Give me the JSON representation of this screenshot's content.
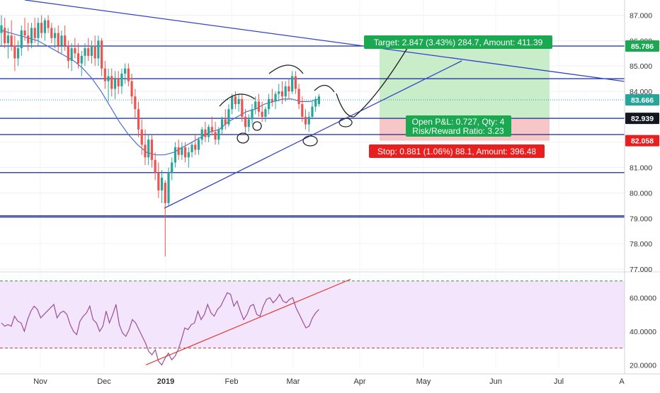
{
  "chart_data": [
    {
      "type": "candlestick",
      "ylim": [
        77.0,
        87.6
      ],
      "y_ticks": [
        "87.000",
        "86.000",
        "85.000",
        "84.000",
        "83.000",
        "82.000",
        "81.000",
        "80.000",
        "79.000",
        "78.000",
        "77.000"
      ],
      "x_ticks": [
        "Nov",
        "Dec",
        "2019",
        "Feb",
        "Mar",
        "Apr",
        "May",
        "Jun",
        "Jul",
        "A"
      ],
      "price_labels": [
        {
          "text": "85.786",
          "value": 85.786,
          "color": "#1aa851"
        },
        {
          "text": "83.666",
          "value": 83.666,
          "color": "#26a69a"
        },
        {
          "text": "82.939",
          "value": 82.939,
          "color": "#131722"
        },
        {
          "text": "82.058",
          "value": 82.058,
          "color": "#e91e1e"
        }
      ],
      "candles": [
        {
          "date": "2018-10-22",
          "o": 86.3,
          "h": 87.0,
          "l": 85.8,
          "c": 86.6
        },
        {
          "date": "2018-10-23",
          "o": 86.5,
          "h": 86.9,
          "l": 85.7,
          "c": 85.9
        },
        {
          "date": "2018-10-24",
          "o": 85.9,
          "h": 86.5,
          "l": 85.3,
          "c": 86.2
        },
        {
          "date": "2018-10-25",
          "o": 86.2,
          "h": 86.8,
          "l": 85.6,
          "c": 85.8
        },
        {
          "date": "2018-10-26",
          "o": 85.8,
          "h": 86.2,
          "l": 84.8,
          "c": 85.3
        },
        {
          "date": "2018-10-29",
          "o": 85.3,
          "h": 86.0,
          "l": 85.0,
          "c": 85.7
        },
        {
          "date": "2018-10-30",
          "o": 85.7,
          "h": 86.6,
          "l": 85.4,
          "c": 86.4
        },
        {
          "date": "2018-10-31",
          "o": 86.4,
          "h": 86.9,
          "l": 86.0,
          "c": 86.2
        },
        {
          "date": "2018-11-01",
          "o": 86.2,
          "h": 86.7,
          "l": 85.6,
          "c": 85.9
        },
        {
          "date": "2018-11-02",
          "o": 85.9,
          "h": 86.7,
          "l": 85.7,
          "c": 86.5
        },
        {
          "date": "2018-11-05",
          "o": 86.5,
          "h": 86.9,
          "l": 85.9,
          "c": 86.1
        },
        {
          "date": "2018-11-06",
          "o": 86.1,
          "h": 86.9,
          "l": 85.8,
          "c": 86.7
        },
        {
          "date": "2018-11-07",
          "o": 86.7,
          "h": 87.0,
          "l": 86.1,
          "c": 86.3
        },
        {
          "date": "2018-11-08",
          "o": 86.3,
          "h": 86.9,
          "l": 86.0,
          "c": 86.8
        },
        {
          "date": "2018-11-09",
          "o": 86.8,
          "h": 87.0,
          "l": 86.3,
          "c": 86.5
        },
        {
          "date": "2018-11-12",
          "o": 86.5,
          "h": 86.7,
          "l": 85.9,
          "c": 86.1
        },
        {
          "date": "2018-11-13",
          "o": 86.1,
          "h": 86.5,
          "l": 85.7,
          "c": 86.3
        },
        {
          "date": "2018-11-14",
          "o": 86.3,
          "h": 86.6,
          "l": 85.5,
          "c": 85.8
        },
        {
          "date": "2018-11-15",
          "o": 85.8,
          "h": 86.4,
          "l": 85.5,
          "c": 86.2
        },
        {
          "date": "2018-11-16",
          "o": 86.2,
          "h": 86.6,
          "l": 85.6,
          "c": 85.8
        },
        {
          "date": "2018-11-19",
          "o": 85.8,
          "h": 86.0,
          "l": 84.9,
          "c": 85.2
        },
        {
          "date": "2018-11-20",
          "o": 85.2,
          "h": 85.9,
          "l": 84.8,
          "c": 85.7
        },
        {
          "date": "2018-11-21",
          "o": 85.7,
          "h": 86.1,
          "l": 85.3,
          "c": 85.5
        },
        {
          "date": "2018-11-23",
          "o": 85.5,
          "h": 85.9,
          "l": 84.9,
          "c": 85.1
        },
        {
          "date": "2018-11-26",
          "o": 85.1,
          "h": 85.6,
          "l": 84.6,
          "c": 85.4
        },
        {
          "date": "2018-11-27",
          "o": 85.4,
          "h": 85.9,
          "l": 85.0,
          "c": 85.7
        },
        {
          "date": "2018-11-28",
          "o": 85.7,
          "h": 86.1,
          "l": 85.2,
          "c": 85.4
        },
        {
          "date": "2018-11-29",
          "o": 85.4,
          "h": 86.0,
          "l": 85.1,
          "c": 85.8
        },
        {
          "date": "2018-11-30",
          "o": 85.8,
          "h": 86.2,
          "l": 85.0,
          "c": 85.3
        },
        {
          "date": "2018-12-03",
          "o": 85.3,
          "h": 86.2,
          "l": 85.0,
          "c": 86.0
        },
        {
          "date": "2018-12-04",
          "o": 86.0,
          "h": 86.1,
          "l": 84.6,
          "c": 84.9
        },
        {
          "date": "2018-12-06",
          "o": 84.9,
          "h": 85.2,
          "l": 84.1,
          "c": 84.4
        },
        {
          "date": "2018-12-07",
          "o": 84.4,
          "h": 84.9,
          "l": 83.6,
          "c": 84.6
        },
        {
          "date": "2018-12-10",
          "o": 84.6,
          "h": 84.9,
          "l": 83.8,
          "c": 84.1
        },
        {
          "date": "2018-12-11",
          "o": 84.1,
          "h": 84.8,
          "l": 83.7,
          "c": 84.5
        },
        {
          "date": "2018-12-12",
          "o": 84.5,
          "h": 84.8,
          "l": 83.9,
          "c": 84.2
        },
        {
          "date": "2018-12-13",
          "o": 84.2,
          "h": 84.9,
          "l": 83.9,
          "c": 84.7
        },
        {
          "date": "2018-12-14",
          "o": 84.7,
          "h": 85.1,
          "l": 84.3,
          "c": 84.9
        },
        {
          "date": "2018-12-17",
          "o": 84.9,
          "h": 85.1,
          "l": 84.2,
          "c": 84.4
        },
        {
          "date": "2018-12-18",
          "o": 84.4,
          "h": 84.7,
          "l": 83.5,
          "c": 83.8
        },
        {
          "date": "2018-12-19",
          "o": 83.8,
          "h": 84.1,
          "l": 82.9,
          "c": 83.3
        },
        {
          "date": "2018-12-20",
          "o": 83.3,
          "h": 83.6,
          "l": 82.2,
          "c": 82.5
        },
        {
          "date": "2018-12-21",
          "o": 82.5,
          "h": 82.9,
          "l": 81.5,
          "c": 81.9
        },
        {
          "date": "2018-12-24",
          "o": 81.9,
          "h": 82.5,
          "l": 81.1,
          "c": 81.4
        },
        {
          "date": "2018-12-26",
          "o": 81.4,
          "h": 82.3,
          "l": 81.1,
          "c": 82.1
        },
        {
          "date": "2018-12-27",
          "o": 82.1,
          "h": 82.3,
          "l": 81.0,
          "c": 81.3
        },
        {
          "date": "2018-12-28",
          "o": 81.3,
          "h": 81.6,
          "l": 80.5,
          "c": 80.8
        },
        {
          "date": "2018-12-31",
          "o": 80.8,
          "h": 81.2,
          "l": 79.8,
          "c": 80.1
        },
        {
          "date": "2019-01-02",
          "o": 80.1,
          "h": 80.9,
          "l": 79.6,
          "c": 80.6
        },
        {
          "date": "2019-01-03",
          "o": 80.4,
          "h": 80.5,
          "l": 77.5,
          "c": 79.6
        },
        {
          "date": "2019-01-04",
          "o": 79.6,
          "h": 81.0,
          "l": 79.5,
          "c": 80.8
        },
        {
          "date": "2019-01-07",
          "o": 80.8,
          "h": 81.4,
          "l": 80.5,
          "c": 81.2
        },
        {
          "date": "2019-01-08",
          "o": 81.2,
          "h": 82.0,
          "l": 81.0,
          "c": 81.8
        },
        {
          "date": "2019-01-09",
          "o": 81.8,
          "h": 82.1,
          "l": 81.3,
          "c": 81.5
        },
        {
          "date": "2019-01-10",
          "o": 81.5,
          "h": 82.0,
          "l": 81.3,
          "c": 81.8
        },
        {
          "date": "2019-01-11",
          "o": 81.8,
          "h": 82.0,
          "l": 81.2,
          "c": 81.4
        },
        {
          "date": "2019-01-14",
          "o": 81.4,
          "h": 81.8,
          "l": 81.0,
          "c": 81.6
        },
        {
          "date": "2019-01-15",
          "o": 81.6,
          "h": 82.0,
          "l": 81.4,
          "c": 81.9
        },
        {
          "date": "2019-01-16",
          "o": 81.9,
          "h": 82.3,
          "l": 81.5,
          "c": 81.7
        },
        {
          "date": "2019-01-17",
          "o": 81.7,
          "h": 82.2,
          "l": 81.5,
          "c": 82.1
        },
        {
          "date": "2019-01-18",
          "o": 82.1,
          "h": 82.6,
          "l": 81.9,
          "c": 82.5
        },
        {
          "date": "2019-01-22",
          "o": 82.5,
          "h": 82.8,
          "l": 82.0,
          "c": 82.2
        },
        {
          "date": "2019-01-23",
          "o": 82.2,
          "h": 82.7,
          "l": 82.0,
          "c": 82.6
        },
        {
          "date": "2019-01-24",
          "o": 82.6,
          "h": 83.0,
          "l": 82.3,
          "c": 82.4
        },
        {
          "date": "2019-01-25",
          "o": 82.4,
          "h": 82.8,
          "l": 81.9,
          "c": 82.1
        },
        {
          "date": "2019-01-28",
          "o": 82.1,
          "h": 82.6,
          "l": 81.9,
          "c": 82.5
        },
        {
          "date": "2019-01-29",
          "o": 82.5,
          "h": 83.0,
          "l": 82.3,
          "c": 82.9
        },
        {
          "date": "2019-01-30",
          "o": 82.9,
          "h": 83.3,
          "l": 82.5,
          "c": 82.7
        },
        {
          "date": "2019-01-31",
          "o": 82.7,
          "h": 83.5,
          "l": 82.6,
          "c": 83.3
        },
        {
          "date": "2019-02-01",
          "o": 83.3,
          "h": 83.9,
          "l": 83.1,
          "c": 83.8
        },
        {
          "date": "2019-02-04",
          "o": 83.8,
          "h": 84.0,
          "l": 83.3,
          "c": 83.5
        },
        {
          "date": "2019-02-05",
          "o": 83.5,
          "h": 83.9,
          "l": 83.2,
          "c": 83.7
        },
        {
          "date": "2019-02-06",
          "o": 83.7,
          "h": 83.9,
          "l": 82.8,
          "c": 83.0
        },
        {
          "date": "2019-02-07",
          "o": 83.0,
          "h": 83.3,
          "l": 82.3,
          "c": 82.6
        },
        {
          "date": "2019-02-08",
          "o": 82.6,
          "h": 83.1,
          "l": 82.4,
          "c": 82.9
        },
        {
          "date": "2019-02-11",
          "o": 82.9,
          "h": 83.5,
          "l": 82.7,
          "c": 83.3
        },
        {
          "date": "2019-02-12",
          "o": 83.3,
          "h": 83.8,
          "l": 83.1,
          "c": 83.6
        },
        {
          "date": "2019-02-13",
          "o": 83.6,
          "h": 83.9,
          "l": 83.0,
          "c": 83.2
        },
        {
          "date": "2019-02-14",
          "o": 83.2,
          "h": 83.6,
          "l": 82.8,
          "c": 83.0
        },
        {
          "date": "2019-02-15",
          "o": 83.0,
          "h": 83.4,
          "l": 82.8,
          "c": 83.3
        },
        {
          "date": "2019-02-19",
          "o": 83.3,
          "h": 83.9,
          "l": 83.1,
          "c": 83.7
        },
        {
          "date": "2019-02-20",
          "o": 83.7,
          "h": 84.1,
          "l": 83.4,
          "c": 83.6
        },
        {
          "date": "2019-02-21",
          "o": 83.6,
          "h": 84.0,
          "l": 83.3,
          "c": 83.9
        },
        {
          "date": "2019-02-22",
          "o": 83.9,
          "h": 84.3,
          "l": 83.6,
          "c": 84.0
        },
        {
          "date": "2019-02-25",
          "o": 84.0,
          "h": 84.4,
          "l": 83.5,
          "c": 83.8
        },
        {
          "date": "2019-02-26",
          "o": 83.8,
          "h": 84.4,
          "l": 83.6,
          "c": 84.2
        },
        {
          "date": "2019-02-27",
          "o": 84.2,
          "h": 84.5,
          "l": 83.7,
          "c": 84.0
        },
        {
          "date": "2019-02-28",
          "o": 84.0,
          "h": 84.8,
          "l": 83.9,
          "c": 84.6
        },
        {
          "date": "2019-03-01",
          "o": 84.6,
          "h": 84.8,
          "l": 83.9,
          "c": 84.1
        },
        {
          "date": "2019-03-04",
          "o": 84.1,
          "h": 84.3,
          "l": 83.3,
          "c": 83.5
        },
        {
          "date": "2019-03-05",
          "o": 83.5,
          "h": 83.8,
          "l": 82.8,
          "c": 83.0
        },
        {
          "date": "2019-03-06",
          "o": 83.0,
          "h": 83.3,
          "l": 82.5,
          "c": 82.7
        },
        {
          "date": "2019-03-07",
          "o": 82.7,
          "h": 83.2,
          "l": 82.4,
          "c": 83.0
        },
        {
          "date": "2019-03-08",
          "o": 83.0,
          "h": 83.6,
          "l": 82.9,
          "c": 83.4
        },
        {
          "date": "2019-03-11",
          "o": 83.4,
          "h": 83.8,
          "l": 83.2,
          "c": 83.7
        },
        {
          "date": "2019-03-12",
          "o": 83.5,
          "h": 83.9,
          "l": 83.4,
          "c": 83.8
        }
      ],
      "moving_average": [
        86.4,
        86.3,
        86.2,
        86.1,
        86.0,
        85.8,
        85.6,
        85.4,
        85.2,
        84.9,
        84.5,
        84.0,
        83.4,
        82.8,
        82.3,
        81.9,
        81.6,
        81.5,
        81.5,
        81.6,
        81.8,
        82.0,
        82.2,
        82.4,
        82.5,
        82.8,
        83.0,
        83.2,
        83.3,
        83.5,
        83.6,
        83.7,
        83.7,
        83.6,
        83.6,
        83.7
      ],
      "horizontal_levels": [
        85.786,
        84.5,
        82.939,
        82.3,
        80.8,
        79.1,
        79.05
      ],
      "position": {
        "entry": 82.939,
        "target": 85.786,
        "stop": 82.058,
        "target_label": "Target: 2.847 (3.43%) 284.7, Amount: 411.39",
        "pnl_label_line1": "Open P&L: 0.727, Qty: 4",
        "pnl_label_line2": "Risk/Reward Ratio: 3.23",
        "stop_label": "Stop: 0.881 (1.06%) 88.1, Amount: 396.48"
      },
      "colors": {
        "up": "#26a69a",
        "down": "#ef5350",
        "trendline": "#3344cc",
        "level_line": "#1a2a8c",
        "profit_zone": "#c9ecc9",
        "loss_zone": "#f7c7c7",
        "target_tag": "#1aa851",
        "stop_tag": "#e91e1e"
      }
    },
    {
      "type": "line",
      "ylim": [
        18.0,
        72.0
      ],
      "y_ticks": [
        "60.0000",
        "40.0000",
        "20.0000"
      ],
      "levels": [
        70,
        30
      ],
      "series": [
        {
          "values": [
            45,
            43,
            44,
            43,
            49,
            46,
            45,
            40,
            47,
            52,
            55,
            53,
            48,
            50,
            52,
            54,
            56,
            48,
            51,
            52,
            50,
            44,
            40,
            38,
            46,
            49,
            51,
            55,
            47,
            45,
            40,
            43,
            52,
            45,
            50,
            56,
            44,
            39,
            37,
            41,
            47,
            45,
            41,
            37,
            33,
            28,
            26,
            29,
            22,
            20,
            24,
            27,
            23,
            25,
            29,
            35,
            42,
            41,
            44,
            45,
            52,
            47,
            50,
            56,
            51,
            49,
            53,
            55,
            59,
            63,
            62,
            55,
            58,
            52,
            47,
            50,
            55,
            56,
            50,
            49,
            55,
            59,
            60,
            57,
            59,
            62,
            58,
            57,
            59,
            60,
            54,
            50,
            46,
            42,
            43,
            48,
            51,
            53
          ]
        }
      ],
      "trendline": [
        [
          20,
          49
        ],
        [
          48,
          85
        ]
      ],
      "colors": {
        "line": "#9b4f9b",
        "band": "#f3e5fb",
        "upper": "#2e9e3e",
        "lower": "#e53935",
        "trend": "#e53935"
      }
    }
  ]
}
